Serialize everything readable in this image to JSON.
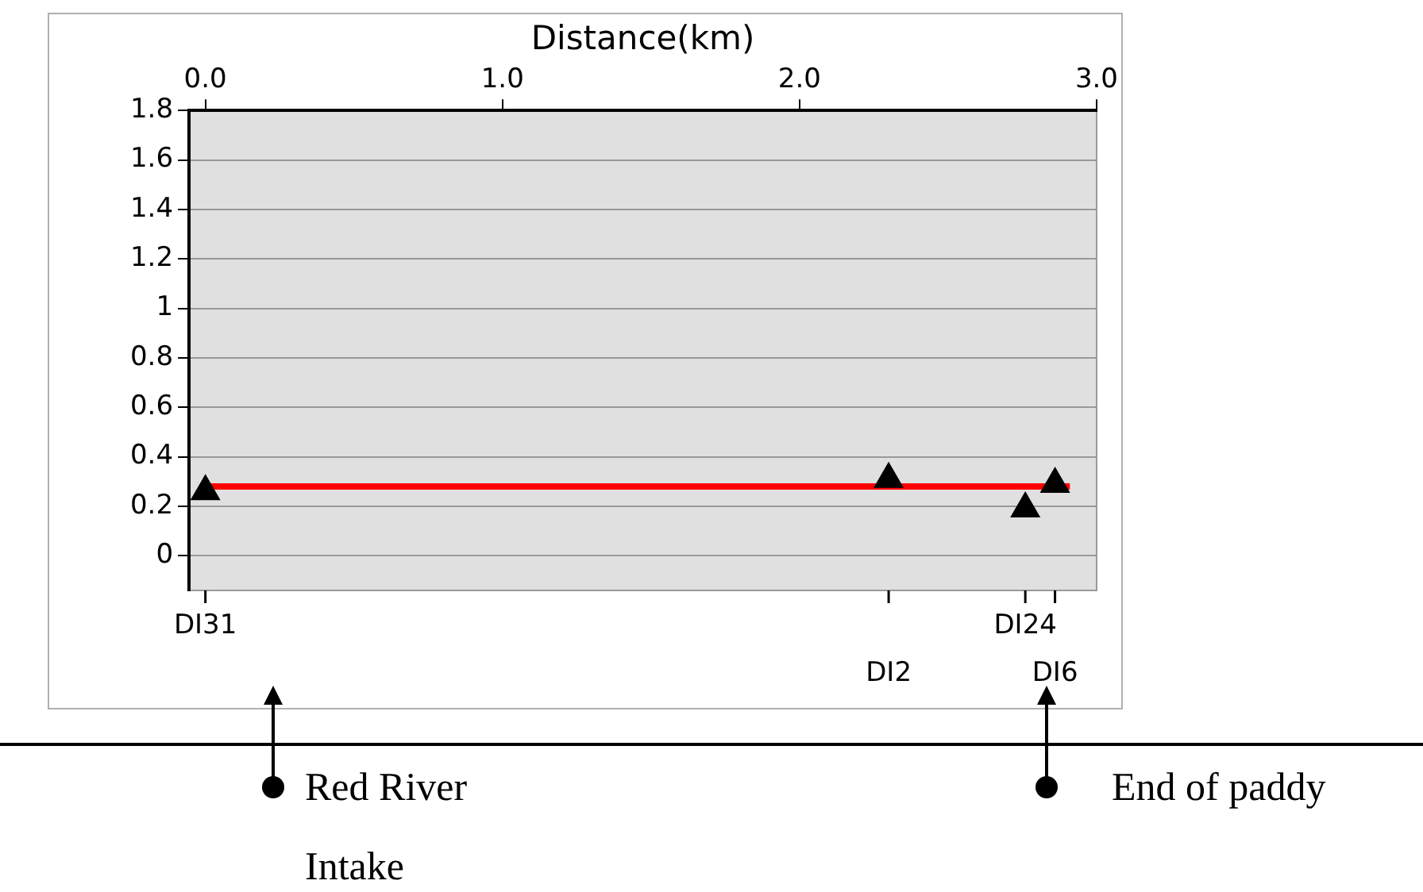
{
  "chart_data": {
    "type": "scatter",
    "xlabel": "Distance(km)",
    "xlim": [
      -0.055,
      3.0
    ],
    "ylim": [
      -0.14,
      1.8
    ],
    "xticks": [
      {
        "value": 0,
        "label": "0.0"
      },
      {
        "value": 1,
        "label": "1.0"
      },
      {
        "value": 2,
        "label": "2.0"
      },
      {
        "value": 3,
        "label": "3.0"
      }
    ],
    "yticks": [
      0,
      0.2,
      0.4,
      0.6,
      0.8,
      1,
      1.2,
      1.4,
      1.6,
      1.8
    ],
    "grid": "y",
    "legend": false,
    "marker": "triangle",
    "series": [
      {
        "color": "#000000",
        "x": [
          0,
          2.3,
          2.76,
          2.86
        ],
        "values": [
          0.26,
          0.31,
          0.19,
          0.29
        ]
      },
      {
        "type": "line",
        "color": "#ff0000",
        "marker": "none",
        "x": [
          0,
          2.91
        ],
        "values": [
          0.28,
          0.28
        ]
      }
    ],
    "annotations": [
      "DI31",
      "DI2",
      "DI24",
      "DI6",
      "Red River Intake",
      "End of paddy"
    ]
  }
}
